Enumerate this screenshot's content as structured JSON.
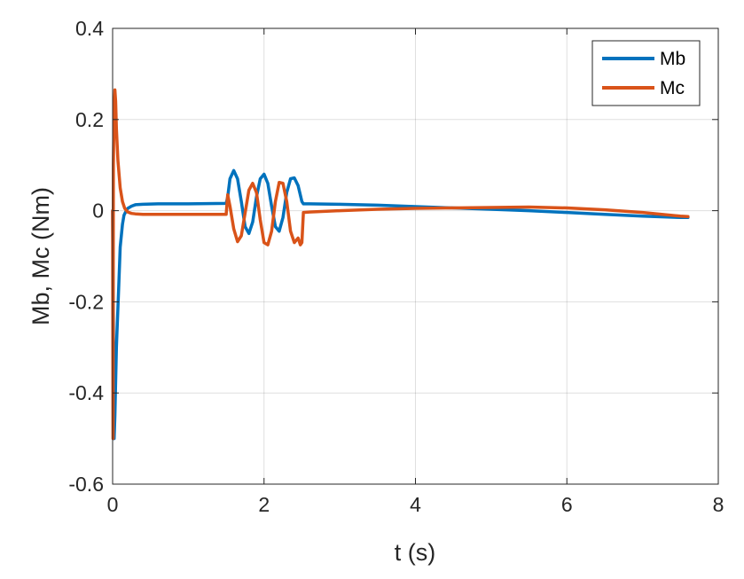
{
  "chart_data": {
    "type": "line",
    "title": "",
    "xlabel": "t (s)",
    "ylabel": "Mb, Mc (Nm)",
    "xlim": [
      0,
      8
    ],
    "ylim": [
      -0.6,
      0.4
    ],
    "xticks": [
      0,
      2,
      4,
      6,
      8
    ],
    "xtick_labels": [
      "0",
      "2",
      "4",
      "6",
      "8"
    ],
    "yticks": [
      -0.6,
      -0.4,
      -0.2,
      0,
      0.2,
      0.4
    ],
    "ytick_labels": [
      "-0.6",
      "-0.4",
      "-0.2",
      "0",
      "0.2",
      "0.4"
    ],
    "grid": true,
    "legend_position": "top-right",
    "series": [
      {
        "name": "Mb",
        "color": "#0072BD",
        "x": [
          0,
          0.02,
          0.03,
          0.05,
          0.08,
          0.1,
          0.13,
          0.15,
          0.18,
          0.2,
          0.25,
          0.3,
          0.4,
          0.6,
          1.0,
          1.5,
          1.52,
          1.55,
          1.6,
          1.65,
          1.7,
          1.75,
          1.8,
          1.85,
          1.9,
          1.95,
          2.0,
          2.05,
          2.1,
          2.15,
          2.2,
          2.25,
          2.3,
          2.35,
          2.4,
          2.45,
          2.5,
          2.52,
          2.6,
          3.0,
          3.5,
          4.0,
          4.5,
          5.0,
          5.5,
          6.0,
          6.5,
          7.0,
          7.5,
          7.6
        ],
        "y": [
          0.0,
          -0.5,
          -0.45,
          -0.3,
          -0.17,
          -0.08,
          -0.03,
          -0.01,
          0.0,
          0.005,
          0.01,
          0.013,
          0.014,
          0.015,
          0.015,
          0.016,
          0.03,
          0.07,
          0.088,
          0.07,
          0.02,
          -0.035,
          -0.05,
          -0.025,
          0.03,
          0.07,
          0.08,
          0.06,
          0.01,
          -0.035,
          -0.045,
          -0.015,
          0.04,
          0.07,
          0.072,
          0.055,
          0.02,
          0.015,
          0.015,
          0.014,
          0.012,
          0.009,
          0.006,
          0.003,
          0.0,
          -0.004,
          -0.008,
          -0.012,
          -0.015,
          -0.015
        ]
      },
      {
        "name": "Mc",
        "color": "#D95319",
        "x": [
          0,
          0.005,
          0.01,
          0.02,
          0.03,
          0.04,
          0.05,
          0.07,
          0.1,
          0.13,
          0.16,
          0.2,
          0.25,
          0.3,
          0.4,
          0.6,
          1.0,
          1.5,
          1.52,
          1.55,
          1.6,
          1.65,
          1.7,
          1.75,
          1.8,
          1.85,
          1.9,
          1.95,
          2.0,
          2.05,
          2.1,
          2.15,
          2.2,
          2.25,
          2.3,
          2.35,
          2.4,
          2.45,
          2.48,
          2.5,
          2.52,
          2.6,
          3.0,
          3.5,
          4.0,
          4.5,
          5.0,
          5.5,
          6.0,
          6.5,
          7.0,
          7.5,
          7.6
        ],
        "y": [
          0.0,
          -0.5,
          0.1,
          0.22,
          0.265,
          0.24,
          0.18,
          0.11,
          0.05,
          0.02,
          0.005,
          -0.003,
          -0.006,
          -0.007,
          -0.008,
          -0.008,
          -0.008,
          -0.008,
          0.035,
          0.01,
          -0.04,
          -0.068,
          -0.055,
          -0.005,
          0.045,
          0.06,
          0.04,
          -0.02,
          -0.07,
          -0.075,
          -0.045,
          0.02,
          0.062,
          0.06,
          0.02,
          -0.045,
          -0.07,
          -0.06,
          -0.075,
          -0.07,
          -0.004,
          -0.003,
          0.0,
          0.003,
          0.005,
          0.006,
          0.007,
          0.008,
          0.006,
          0.002,
          -0.004,
          -0.012,
          -0.013
        ]
      }
    ]
  }
}
